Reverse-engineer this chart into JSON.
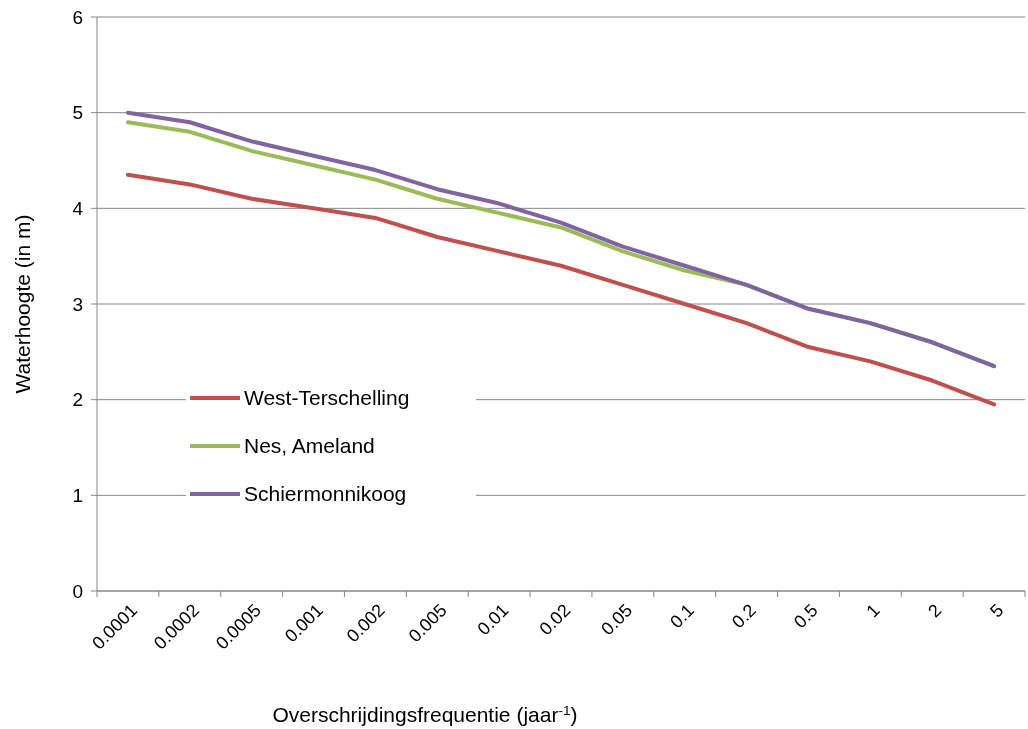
{
  "chart_data": {
    "type": "line",
    "xlabel": "Overschrijdingsfrequentie (jaar$^{-1}$)",
    "ylabel": "Waterhoogte (in m)",
    "categories": [
      "0.0001",
      "0.0002",
      "0.0005",
      "0.001",
      "0.002",
      "0.005",
      "0.01",
      "0.02",
      "0.05",
      "0.1",
      "0.2",
      "0.5",
      "1",
      "2",
      "5"
    ],
    "series": [
      {
        "name": "West-Terschelling",
        "color": "#c0504d",
        "values": [
          4.35,
          4.25,
          4.1,
          4.0,
          3.9,
          3.7,
          3.55,
          3.4,
          3.2,
          3.0,
          2.8,
          2.55,
          2.4,
          2.2,
          1.95
        ]
      },
      {
        "name": "Nes, Ameland",
        "color": "#9bbb59",
        "values": [
          4.9,
          4.8,
          4.6,
          4.45,
          4.3,
          4.1,
          3.95,
          3.8,
          3.55,
          3.35,
          3.2,
          2.95,
          2.8,
          2.6,
          2.35
        ]
      },
      {
        "name": "Schiermonnikoog",
        "color": "#8064a2",
        "values": [
          5.0,
          4.9,
          4.7,
          4.55,
          4.4,
          4.2,
          4.05,
          3.85,
          3.6,
          3.4,
          3.2,
          2.95,
          2.8,
          2.6,
          2.35
        ]
      }
    ],
    "ylim": [
      0,
      6
    ],
    "yticks": [
      0,
      1,
      2,
      3,
      4,
      5,
      6
    ],
    "grid": "y",
    "legend": "bottom left",
    "marker": "none",
    "line_style": "solid"
  }
}
